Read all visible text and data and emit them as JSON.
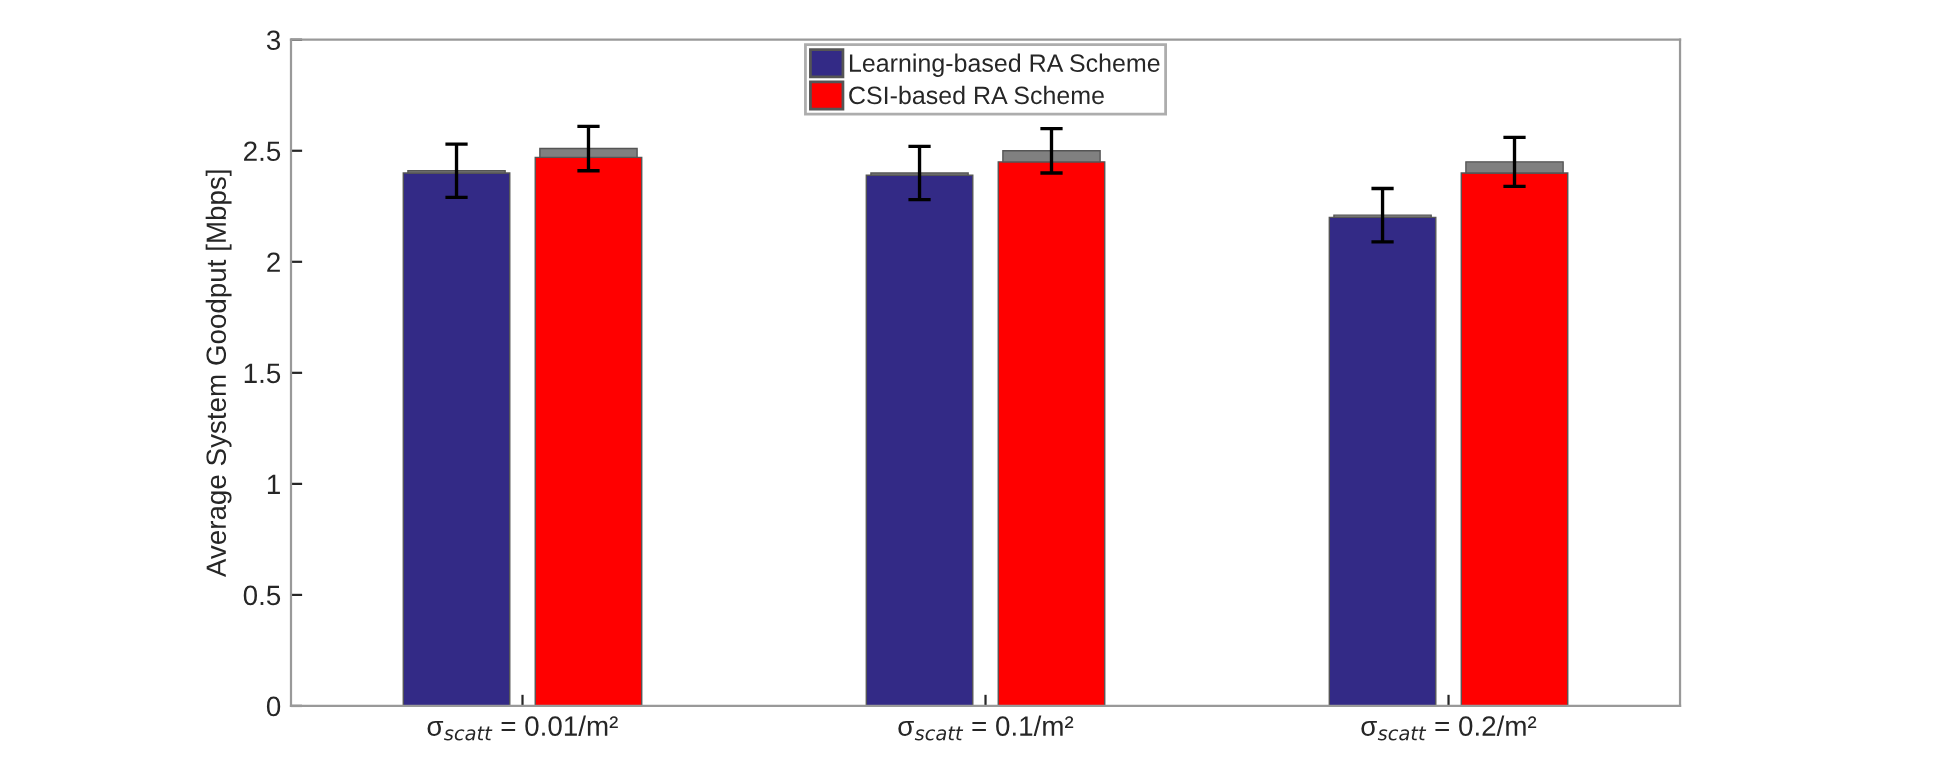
{
  "chart_data": {
    "type": "bar",
    "ylabel": "Average System Goodput [Mbps]",
    "categories": [
      "σ$_{scatt}$ = 0.01/m²",
      "σ$_{scatt}$ = 0.1/m²",
      "σ$_{scatt}$ = 0.2/m²"
    ],
    "series": [
      {
        "name": "Learning-based RA Scheme",
        "color": "#332a86",
        "values": [
          2.4,
          2.39,
          2.2
        ]
      },
      {
        "color": "#808080",
        "values": [
          0.01,
          0.01,
          0.01
        ],
        "base": [
          2.4,
          2.39,
          2.2
        ],
        "errors": [
          0.12,
          0.12,
          0.12
        ]
      },
      {
        "name": "CSI-based RA Scheme",
        "color": "#ff0000",
        "values": [
          2.47,
          2.45,
          2.4
        ]
      },
      {
        "color": "#808080",
        "values": [
          0.04,
          0.05,
          0.05
        ],
        "base": [
          2.47,
          2.45,
          2.4
        ],
        "errors": [
          0.1,
          0.1,
          0.11
        ]
      }
    ],
    "ylim": [
      0,
      3
    ],
    "yticks": [
      0,
      0.5,
      1,
      1.5,
      2,
      2.5,
      3
    ],
    "legend": "top",
    "grid": false
  }
}
